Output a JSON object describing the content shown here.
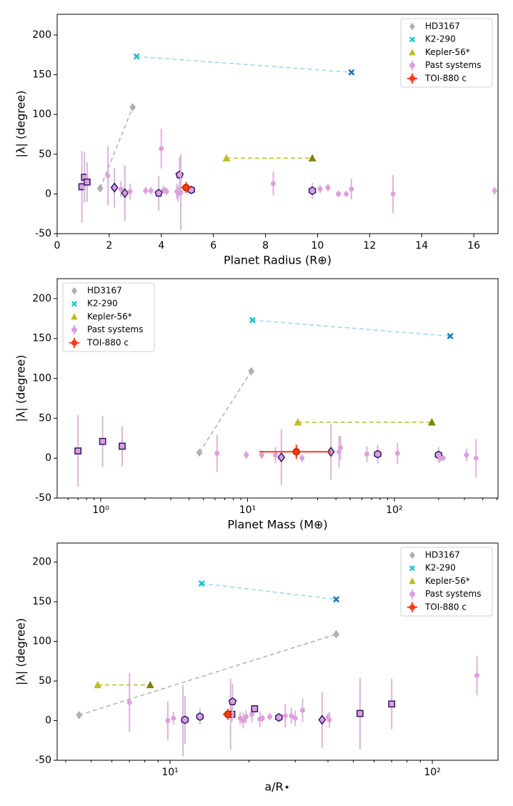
{
  "chart_data": [
    {
      "type": "scatter",
      "xlabel": "Planet Radius (R⊕)",
      "ylabel": "|λ| (degree)",
      "xlim": [
        0,
        16.93
      ],
      "ylim": [
        -50,
        226
      ],
      "xticks": [
        0,
        2,
        4,
        6,
        8,
        10,
        12,
        14,
        16
      ],
      "yticks": [
        -50,
        0,
        50,
        100,
        150,
        200
      ],
      "legend": "upper right",
      "series": [
        {
          "name": "HD3167",
          "color": "#b0b0b0",
          "marker": "D",
          "line": "dashed",
          "x": [
            1.65,
            2.9
          ],
          "values": [
            7,
            109
          ]
        },
        {
          "name": "K2-290",
          "color": "#17becf",
          "colors": [
            "#17becf",
            "#1f77b4"
          ],
          "linecolor": "#9ad8ea",
          "marker": "X",
          "line": "dashed",
          "x": [
            3.05,
            11.3
          ],
          "values": [
            173,
            153
          ]
        },
        {
          "name": "Kepler-56*",
          "color": "#bcbd22",
          "colors": [
            "#bcbd22",
            "#808000"
          ],
          "marker": "^",
          "line": "dashed",
          "x": [
            6.5,
            9.8
          ],
          "values": [
            45,
            45
          ]
        },
        {
          "name": "Past systems",
          "color": "#dda0dd",
          "errcolor": "#dcb4dc",
          "edgecolor": "#2a1a6b",
          "marker": "o",
          "x": [
            0.95,
            1.05,
            1.15,
            1.95,
            2.2,
            2.45,
            2.6,
            2.8,
            3.4,
            3.6,
            3.9,
            4.0,
            4.1,
            4.2,
            4.6,
            4.65,
            4.7,
            4.75,
            5.15,
            8.3,
            9.8,
            10.1,
            10.4,
            10.8,
            11.1,
            11.3,
            12.9,
            16.8
          ],
          "values": [
            9,
            21,
            15,
            23,
            8,
            6,
            1,
            3,
            4,
            4,
            1,
            57,
            5,
            3,
            3,
            0,
            24,
            2,
            5,
            13,
            4,
            6,
            8,
            0,
            0,
            6,
            0,
            4
          ],
          "yerr": [
            45,
            32,
            25,
            37,
            25,
            10,
            35,
            10,
            5,
            5,
            22,
            25,
            5,
            5,
            10,
            10,
            23,
            48,
            4,
            15,
            10,
            5,
            5,
            4,
            4,
            13,
            24,
            5
          ],
          "markers": [
            "s",
            "s",
            "s",
            "o",
            "D",
            "o",
            "D",
            "o",
            "o",
            "o",
            "p",
            "o",
            "o",
            "o",
            "o",
            "o",
            "p",
            "o",
            "h",
            "o",
            "h",
            "o",
            "o",
            "o",
            "o",
            "o",
            "o",
            "o"
          ]
        },
        {
          "name": "TOI-880 c",
          "color": "#ff3a10",
          "marker": "o",
          "x": [
            4.95
          ],
          "values": [
            8
          ],
          "yerr": [
            7
          ],
          "xerr": [
            [
              0.2,
              0.2
            ]
          ]
        }
      ]
    },
    {
      "type": "scatter",
      "xlabel": "Planet Mass (M⊕)",
      "ylabel": "|λ| (degree)",
      "xscale": "log",
      "xlim": [
        0.505,
        508
      ],
      "ylim": [
        -50,
        225
      ],
      "xticks": [
        {
          "value": 1,
          "label": "10⁰"
        },
        {
          "value": 10,
          "label": "10¹"
        },
        {
          "value": 100,
          "label": "10²"
        }
      ],
      "yticks": [
        -50,
        0,
        50,
        100,
        150,
        200
      ],
      "legend": "upper left",
      "series": [
        {
          "name": "HD3167",
          "color": "#b0b0b0",
          "marker": "D",
          "line": "dashed",
          "x": [
            4.7,
            10.6
          ],
          "values": [
            7,
            109
          ]
        },
        {
          "name": "K2-290",
          "color": "#17becf",
          "colors": [
            "#17becf",
            "#1f77b4"
          ],
          "linecolor": "#9ad8ea",
          "marker": "X",
          "line": "dashed",
          "x": [
            10.8,
            240
          ],
          "values": [
            173,
            153
          ]
        },
        {
          "name": "Kepler-56*",
          "color": "#bcbd22",
          "colors": [
            "#bcbd22",
            "#808000"
          ],
          "marker": "^",
          "line": "dashed",
          "x": [
            22,
            180
          ],
          "values": [
            45,
            45
          ]
        },
        {
          "name": "Past systems",
          "color": "#dda0dd",
          "errcolor": "#dcb4dc",
          "edgecolor": "#2a1a6b",
          "marker": "o",
          "x": [
            0.7,
            1.03,
            1.4,
            6.2,
            9.8,
            12.5,
            15.5,
            17,
            23.5,
            37,
            42,
            43,
            65,
            77,
            105,
            200,
            205,
            215,
            310,
            360
          ],
          "values": [
            9,
            21,
            15,
            6,
            4,
            4,
            4,
            1,
            0,
            8,
            8,
            13,
            5,
            5,
            6,
            4,
            0,
            0,
            4,
            0
          ],
          "yerr": [
            45,
            32,
            25,
            23,
            5,
            5,
            10,
            35,
            5,
            35,
            20,
            15,
            10,
            12,
            13,
            10,
            5,
            4,
            8,
            24
          ],
          "markers": [
            "s",
            "s",
            "s",
            "o",
            "o",
            "o",
            "o",
            "D",
            "o",
            "D",
            "o",
            "o",
            "o",
            "h",
            "o",
            "h",
            "o",
            "o",
            "o",
            "o"
          ]
        },
        {
          "name": "TOI-880 c",
          "color": "#ff3a10",
          "marker": "o",
          "x": [
            21.5
          ],
          "values": [
            8
          ],
          "yerr": [
            9
          ],
          "xerr": [
            [
              9.5,
              15.5
            ]
          ]
        }
      ]
    },
    {
      "type": "scatter",
      "xlabel": "a/R⋆",
      "ylabel": "|λ| (degree)",
      "xscale": "log",
      "xlim": [
        3.71,
        178
      ],
      "ylim": [
        -50,
        224
      ],
      "xticks": [
        {
          "value": 10,
          "label": "10¹"
        },
        {
          "value": 100,
          "label": "10²"
        }
      ],
      "yticks": [
        -50,
        0,
        50,
        100,
        150,
        200
      ],
      "legend": "upper right",
      "series": [
        {
          "name": "HD3167",
          "color": "#b0b0b0",
          "marker": "D",
          "line": "dashed",
          "x": [
            4.5,
            43
          ],
          "values": [
            7,
            109
          ]
        },
        {
          "name": "K2-290",
          "color": "#17becf",
          "colors": [
            "#17becf",
            "#1f77b4"
          ],
          "linecolor": "#9ad8ea",
          "marker": "X",
          "line": "dashed",
          "x": [
            13.2,
            43
          ],
          "values": [
            173,
            153
          ]
        },
        {
          "name": "Kepler-56*",
          "color": "#bcbd22",
          "colors": [
            "#bcbd22",
            "#808000"
          ],
          "marker": "^",
          "line": "dashed",
          "x": [
            5.3,
            8.4
          ],
          "values": [
            45,
            45
          ]
        },
        {
          "name": "Past systems",
          "color": "#dda0dd",
          "errcolor": "#dcb4dc",
          "edgecolor": "#2a1a6b",
          "marker": "o",
          "x": [
            7,
            9.8,
            10.3,
            11.2,
            11.4,
            13,
            17,
            17.2,
            17.3,
            18.5,
            19,
            19.5,
            20.5,
            21,
            22,
            22.5,
            24,
            26,
            27.5,
            29,
            30,
            32,
            38,
            40,
            40.5,
            53,
            70,
            148
          ],
          "values": [
            23,
            0,
            3,
            0,
            1,
            5,
            8,
            8,
            24,
            3,
            0,
            5,
            8,
            15,
            2,
            3,
            5,
            4,
            6,
            6,
            3,
            13,
            1,
            4,
            1,
            9,
            21,
            57
          ],
          "yerr": [
            37,
            24,
            8,
            45,
            30,
            10,
            45,
            10,
            23,
            8,
            10,
            8,
            10,
            5,
            10,
            5,
            5,
            5,
            15,
            10,
            10,
            15,
            35,
            5,
            10,
            45,
            32,
            25
          ],
          "markers": [
            "o",
            "o",
            "o",
            "o",
            "h",
            "h",
            "o",
            "s",
            "p",
            "o",
            "o",
            "o",
            "o",
            "s",
            "o",
            "o",
            "o",
            "h",
            "o",
            "o",
            "o",
            "o",
            "D",
            "o",
            "o",
            "s",
            "s",
            "o"
          ]
        },
        {
          "name": "TOI-880 c",
          "color": "#ff3a10",
          "marker": "o",
          "x": [
            16.6
          ],
          "values": [
            8
          ],
          "yerr": [
            7
          ],
          "xerr": [
            [
              0.7,
              0.7
            ]
          ]
        }
      ]
    }
  ]
}
